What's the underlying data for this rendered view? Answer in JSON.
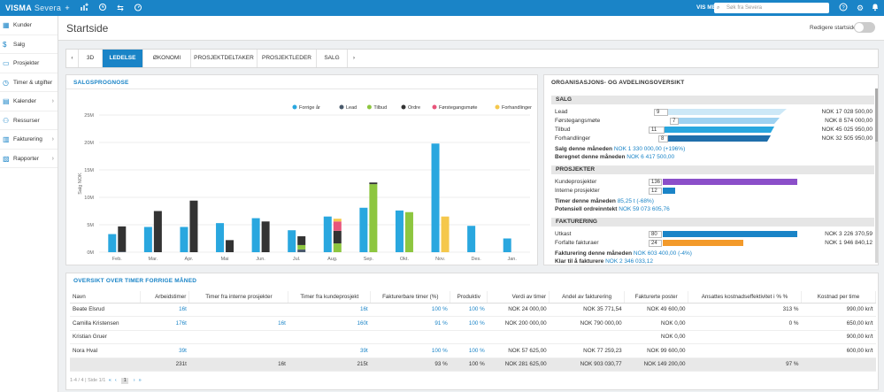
{
  "topbar": {
    "brand": "VISMA",
    "brand_sub": "Severa",
    "user": "VIS MEG",
    "search_placeholder": "Søk fra Severa"
  },
  "sidebar": {
    "items": [
      {
        "label": "Kunder",
        "icon": "building-icon",
        "chevron": false
      },
      {
        "label": "Salg",
        "icon": "dollar-icon",
        "chevron": false
      },
      {
        "label": "Prosjekter",
        "icon": "folder-icon",
        "chevron": false
      },
      {
        "label": "Timer & utgifter",
        "icon": "clock-icon",
        "chevron": false
      },
      {
        "label": "Kalender",
        "icon": "calendar-icon",
        "chevron": true
      },
      {
        "label": "Ressurser",
        "icon": "people-icon",
        "chevron": false
      },
      {
        "label": "Fakturering",
        "icon": "invoice-icon",
        "chevron": true
      },
      {
        "label": "Rapporter",
        "icon": "report-icon",
        "chevron": true
      }
    ]
  },
  "header": {
    "title": "Startside",
    "edit_label": "Redigere startside"
  },
  "tabs": [
    "3D",
    "LEDELSE",
    "ØKONOMI",
    "PROSJEKTDELTAKER",
    "PROSJEKTLEDER",
    "SALG"
  ],
  "active_tab": "LEDELSE",
  "chart_panel": {
    "title": "SALGSPROGNOSE"
  },
  "chart_data": {
    "type": "bar",
    "title": "SALGSPROGNOSE",
    "ylabel": "Salg NOK",
    "xlabel": "",
    "ylim": [
      0,
      25
    ],
    "ytick_labels": [
      "0M",
      "5M",
      "10M",
      "15M",
      "20M",
      "25M"
    ],
    "categories": [
      "Feb.",
      "Mar.",
      "Apr.",
      "Mai",
      "Jun.",
      "Jul.",
      "Aug.",
      "Sep.",
      "Okt.",
      "Nov.",
      "Des.",
      "Jan."
    ],
    "series": [
      {
        "name": "Forrige år",
        "color": "#29a7df",
        "values": [
          3.3,
          4.6,
          4.6,
          5.3,
          6.2,
          4.0,
          6.5,
          8.1,
          7.6,
          19.8,
          4.8,
          2.5
        ]
      },
      {
        "name": "Lead",
        "color": "#4a5a6c",
        "values": [
          0.1,
          0,
          0,
          0,
          0,
          0.5,
          0,
          0,
          0,
          0,
          0,
          0
        ]
      },
      {
        "name": "Tilbud",
        "color": "#8dc63f",
        "values": [
          0,
          0,
          0,
          0,
          0,
          0.8,
          1.6,
          12.4,
          7.3,
          0,
          0,
          0
        ]
      },
      {
        "name": "Ordre",
        "color": "#333333",
        "values": [
          4.6,
          7.5,
          9.4,
          2.2,
          5.6,
          1.6,
          2.3,
          0.3,
          0,
          0,
          0,
          0
        ]
      },
      {
        "name": "Førstegangsmøte",
        "color": "#e8547a",
        "values": [
          0,
          0,
          0,
          0,
          0,
          0,
          1.7,
          0,
          0,
          0,
          0,
          0
        ]
      },
      {
        "name": "Forhandlinger",
        "color": "#f5c84c",
        "values": [
          0,
          0,
          0,
          0,
          0,
          0,
          0.5,
          0,
          0,
          6.5,
          0,
          0
        ]
      }
    ],
    "stacks": [
      [
        "Forrige år"
      ],
      [
        "Lead",
        "Tilbud",
        "Ordre",
        "Førstegangsmøte",
        "Forhandlinger"
      ]
    ],
    "legend_position": "top-right"
  },
  "org_panel": {
    "title": "ORGANISASJONS- OG AVDELINGSOVERSIKT",
    "salg": {
      "heading": "SALG",
      "rows": [
        {
          "label": "Lead",
          "count": "9",
          "amount": "NOK 17 028 500,00",
          "color": "#cde8f7"
        },
        {
          "label": "Førstegangsmøte",
          "count": "7",
          "amount": "NOK 8 574 000,00",
          "color": "#9fd2f1"
        },
        {
          "label": "Tilbud",
          "count": "11",
          "amount": "NOK 45 025 950,00",
          "color": "#29a7df"
        },
        {
          "label": "Forhandlinger",
          "count": "8",
          "amount": "NOK 32 505 950,00",
          "color": "#1f6fab"
        }
      ],
      "month_label": "Salg denne måneden",
      "month_value": "NOK 1 330 000,00 (+196%)",
      "calc_label": "Beregnet denne måneden",
      "calc_value": "NOK 6 417 500,00"
    },
    "prosjekter": {
      "heading": "PROSJEKTER",
      "rows": [
        {
          "label": "Kundeprosjekter",
          "count": "136",
          "fraction": 1.0,
          "color": "#8b4fc9"
        },
        {
          "label": "Interne prosjekter",
          "count": "12",
          "fraction": 0.09,
          "color": "#1a84c7"
        }
      ],
      "hours_label": "Timer denne måneden",
      "hours_value": "85,25 t (-68%)",
      "potential_label": "Potensiell ordreinntekt",
      "potential_value": "NOK 59 073 605,76"
    },
    "fakturering": {
      "heading": "FAKTURERING",
      "rows": [
        {
          "label": "Utkast",
          "count": "80",
          "amount": "NOK 3 226 370,59",
          "fraction": 1.0,
          "color": "#1a84c7"
        },
        {
          "label": "Forfalte fakturaer",
          "count": "24",
          "amount": "NOK 1 946 840,12",
          "fraction": 0.6,
          "color": "#f39a2b"
        }
      ],
      "month_label": "Fakturering denne måneden",
      "month_value": "NOK 603 400,00 (-4%)",
      "ready_label": "Klar til å fakturere",
      "ready_value": "NOK 2 346 033,12"
    }
  },
  "table_panel": {
    "title": "OVERSIKT OVER TIMER FORRIGE MÅNED",
    "columns": [
      "Navn",
      "Arbeidstimer",
      "Timer fra interne prosjekter",
      "Timer fra kundeprosjekt",
      "Fakturerbare timer (%)",
      "Produktiv",
      "Verdi av timer",
      "Andel av fakturering",
      "Fakturerte poster",
      "Ansattes kostnadseffektivitet i % %",
      "Kostnad per time"
    ],
    "rows": [
      [
        "Beate Elsrud",
        "16t",
        "",
        "16t",
        "100 %",
        "100 %",
        "NOK 24 000,00",
        "NOK 35 771,54",
        "NOK 49 600,00",
        "313 %",
        "990,00 kr/t"
      ],
      [
        "Camilla Kristensen",
        "176t",
        "16t",
        "160t",
        "91 %",
        "100 %",
        "NOK 200 000,00",
        "NOK 790 000,00",
        "NOK 0,00",
        "0 %",
        "650,00 kr/t"
      ],
      [
        "Kristian Gruer",
        "",
        "",
        "",
        "",
        "",
        "",
        "",
        "NOK 0,00",
        "",
        "900,00 kr/t"
      ],
      [
        "Nora Hval",
        "39t",
        "",
        "39t",
        "100 %",
        "100 %",
        "NOK 57 625,00",
        "NOK 77 259,23",
        "NOK 99 600,00",
        "",
        "600,00 kr/t"
      ]
    ],
    "totals": [
      "",
      "231t",
      "16t",
      "215t",
      "93 %",
      "100 %",
      "NOK 281 625,00",
      "NOK 903 030,77",
      "NOK 149 200,00",
      "97 %",
      ""
    ],
    "pager_info": "1-4 / 4 | Side 1/1",
    "current_page": "1"
  }
}
